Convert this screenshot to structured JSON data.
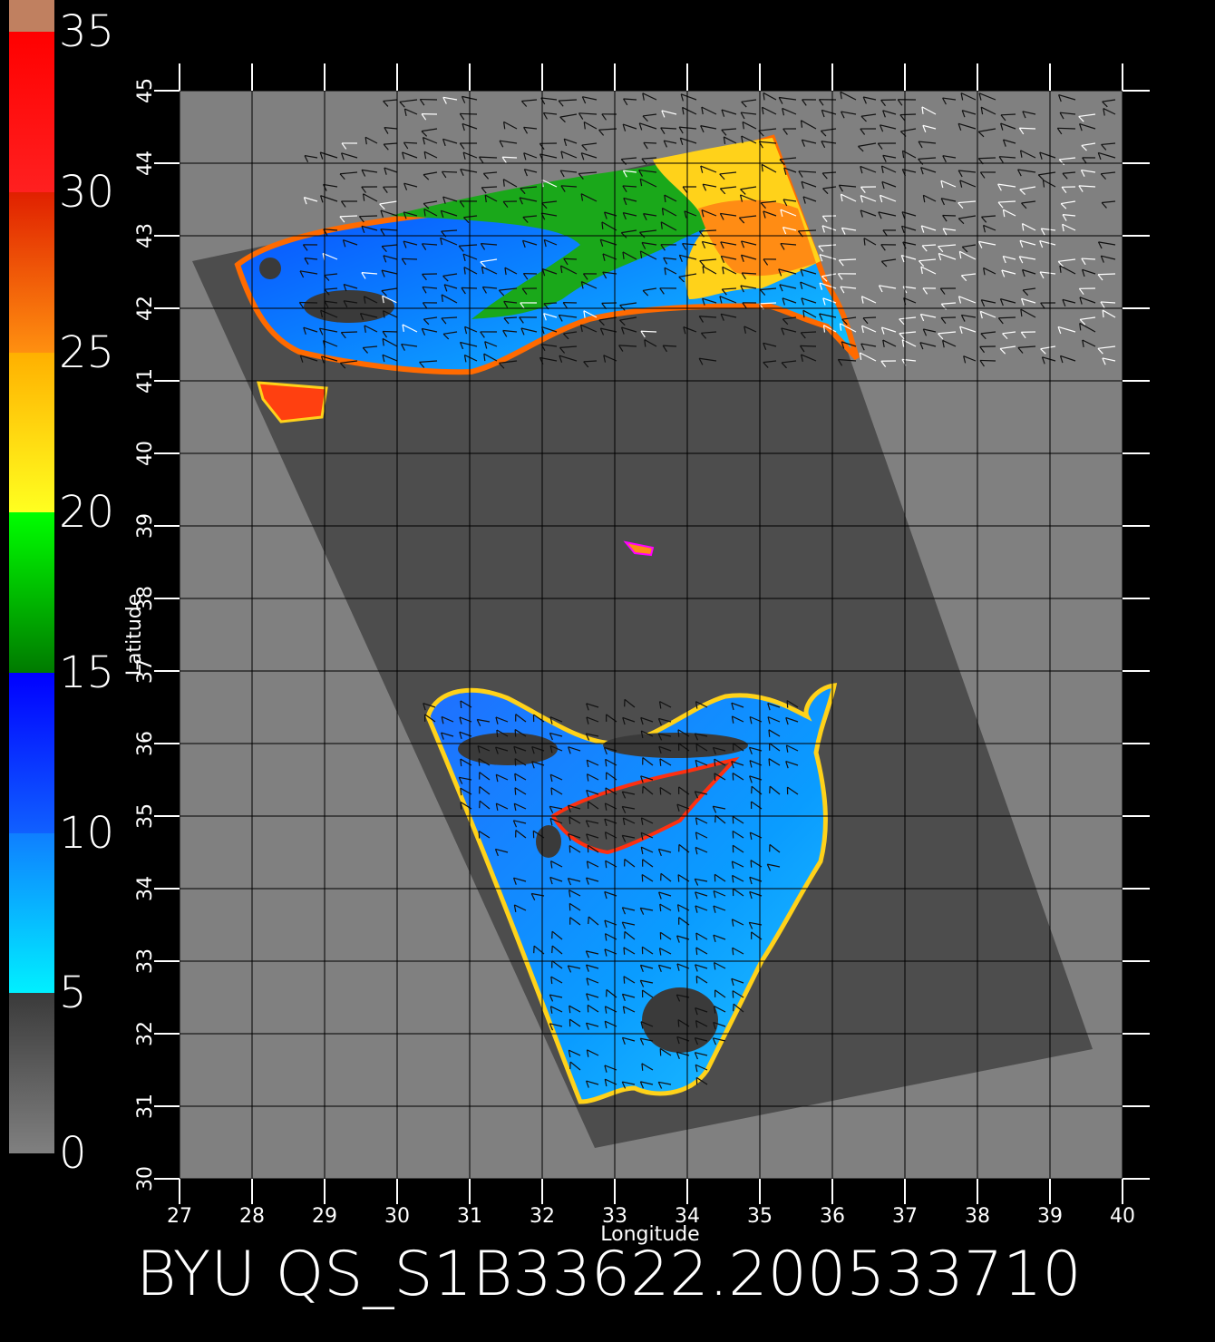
{
  "colorbar": {
    "tick_labels": [
      "0",
      "5",
      "10",
      "15",
      "20",
      "25",
      "30",
      "35"
    ],
    "segments": [
      {
        "from": 0,
        "to": 5,
        "color_top": "#3a3a3a",
        "color_bottom": "#808080"
      },
      {
        "from": 5,
        "to": 10,
        "color_top": "#0f7fff",
        "color_bottom": "#00f0ff"
      },
      {
        "from": 10,
        "to": 15,
        "color_top": "#0000ff",
        "color_bottom": "#1060ff"
      },
      {
        "from": 15,
        "to": 20,
        "color_top": "#00ff00",
        "color_bottom": "#007a00"
      },
      {
        "from": 20,
        "to": 25,
        "color_top": "#ffb000",
        "color_bottom": "#ffff20"
      },
      {
        "from": 25,
        "to": 30,
        "color_top": "#e02000",
        "color_bottom": "#ff9010"
      },
      {
        "from": 30,
        "to": 35,
        "color_top": "#ff0000",
        "color_bottom": "#ff2020"
      },
      {
        "from": 35,
        "to": 36,
        "color_top": "#c08060",
        "color_bottom": "#c08060"
      }
    ]
  },
  "map": {
    "x_axis_label": "Longitude",
    "y_axis_label": "Latitude",
    "lon_range": [
      27,
      40
    ],
    "lat_range": [
      30,
      45
    ],
    "lon_ticks": [
      "27",
      "28",
      "29",
      "30",
      "31",
      "32",
      "33",
      "34",
      "35",
      "36",
      "37",
      "38",
      "39",
      "40"
    ],
    "lat_ticks": [
      "30",
      "31",
      "32",
      "33",
      "34",
      "35",
      "36",
      "37",
      "38",
      "39",
      "40",
      "41",
      "42",
      "43",
      "44",
      "45"
    ],
    "colors": {
      "background": "#000000",
      "map_area": "#808080",
      "swath": "#4d4d4d",
      "grid": "#000000",
      "axes": "#ffffff"
    }
  },
  "title": "BYU QS_S1B33622.200533710"
}
